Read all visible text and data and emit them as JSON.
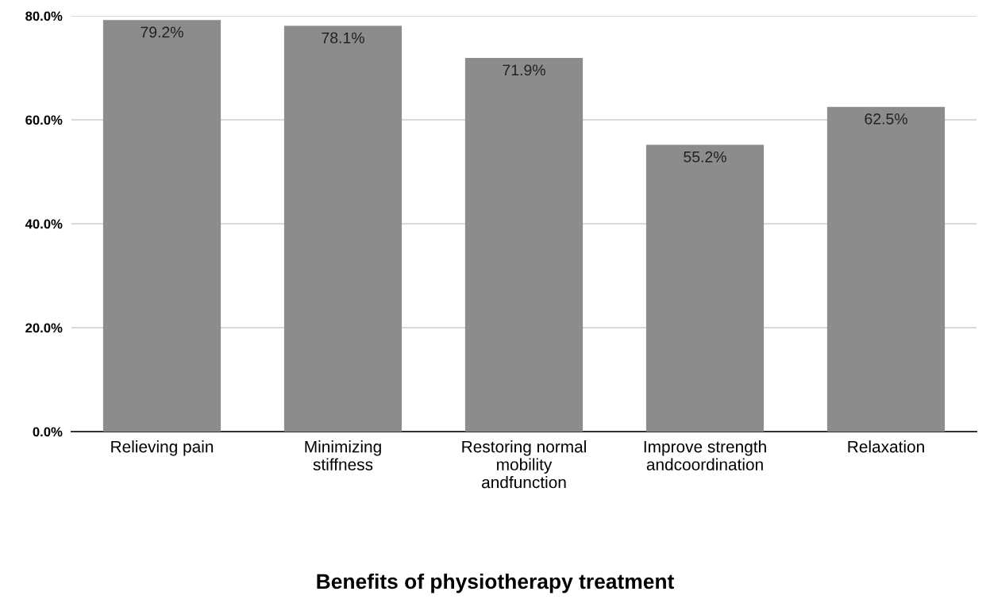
{
  "chart_data": {
    "type": "bar",
    "title": "Benefits of physiotherapy treatment",
    "categories": [
      "Relieving pain",
      "Minimizing\nstiffness",
      "Restoring normal\nmobility\nandfunction",
      "Improve strength\nandcoordination",
      "Relaxation"
    ],
    "values": [
      79.2,
      78.1,
      71.9,
      55.2,
      62.5
    ],
    "value_labels": [
      "79.2%",
      "78.1%",
      "71.9%",
      "55.2%",
      "62.5%"
    ],
    "color": "#8c8c8c",
    "ylim": [
      0,
      80
    ],
    "yticks": [
      {
        "value": 0,
        "label": "0.0%"
      },
      {
        "value": 20,
        "label": "20.0%"
      },
      {
        "value": 40,
        "label": "40.0%"
      },
      {
        "value": 60,
        "label": "60.0%"
      },
      {
        "value": 80,
        "label": "80.0%"
      }
    ],
    "grid": "y",
    "legend": false
  }
}
